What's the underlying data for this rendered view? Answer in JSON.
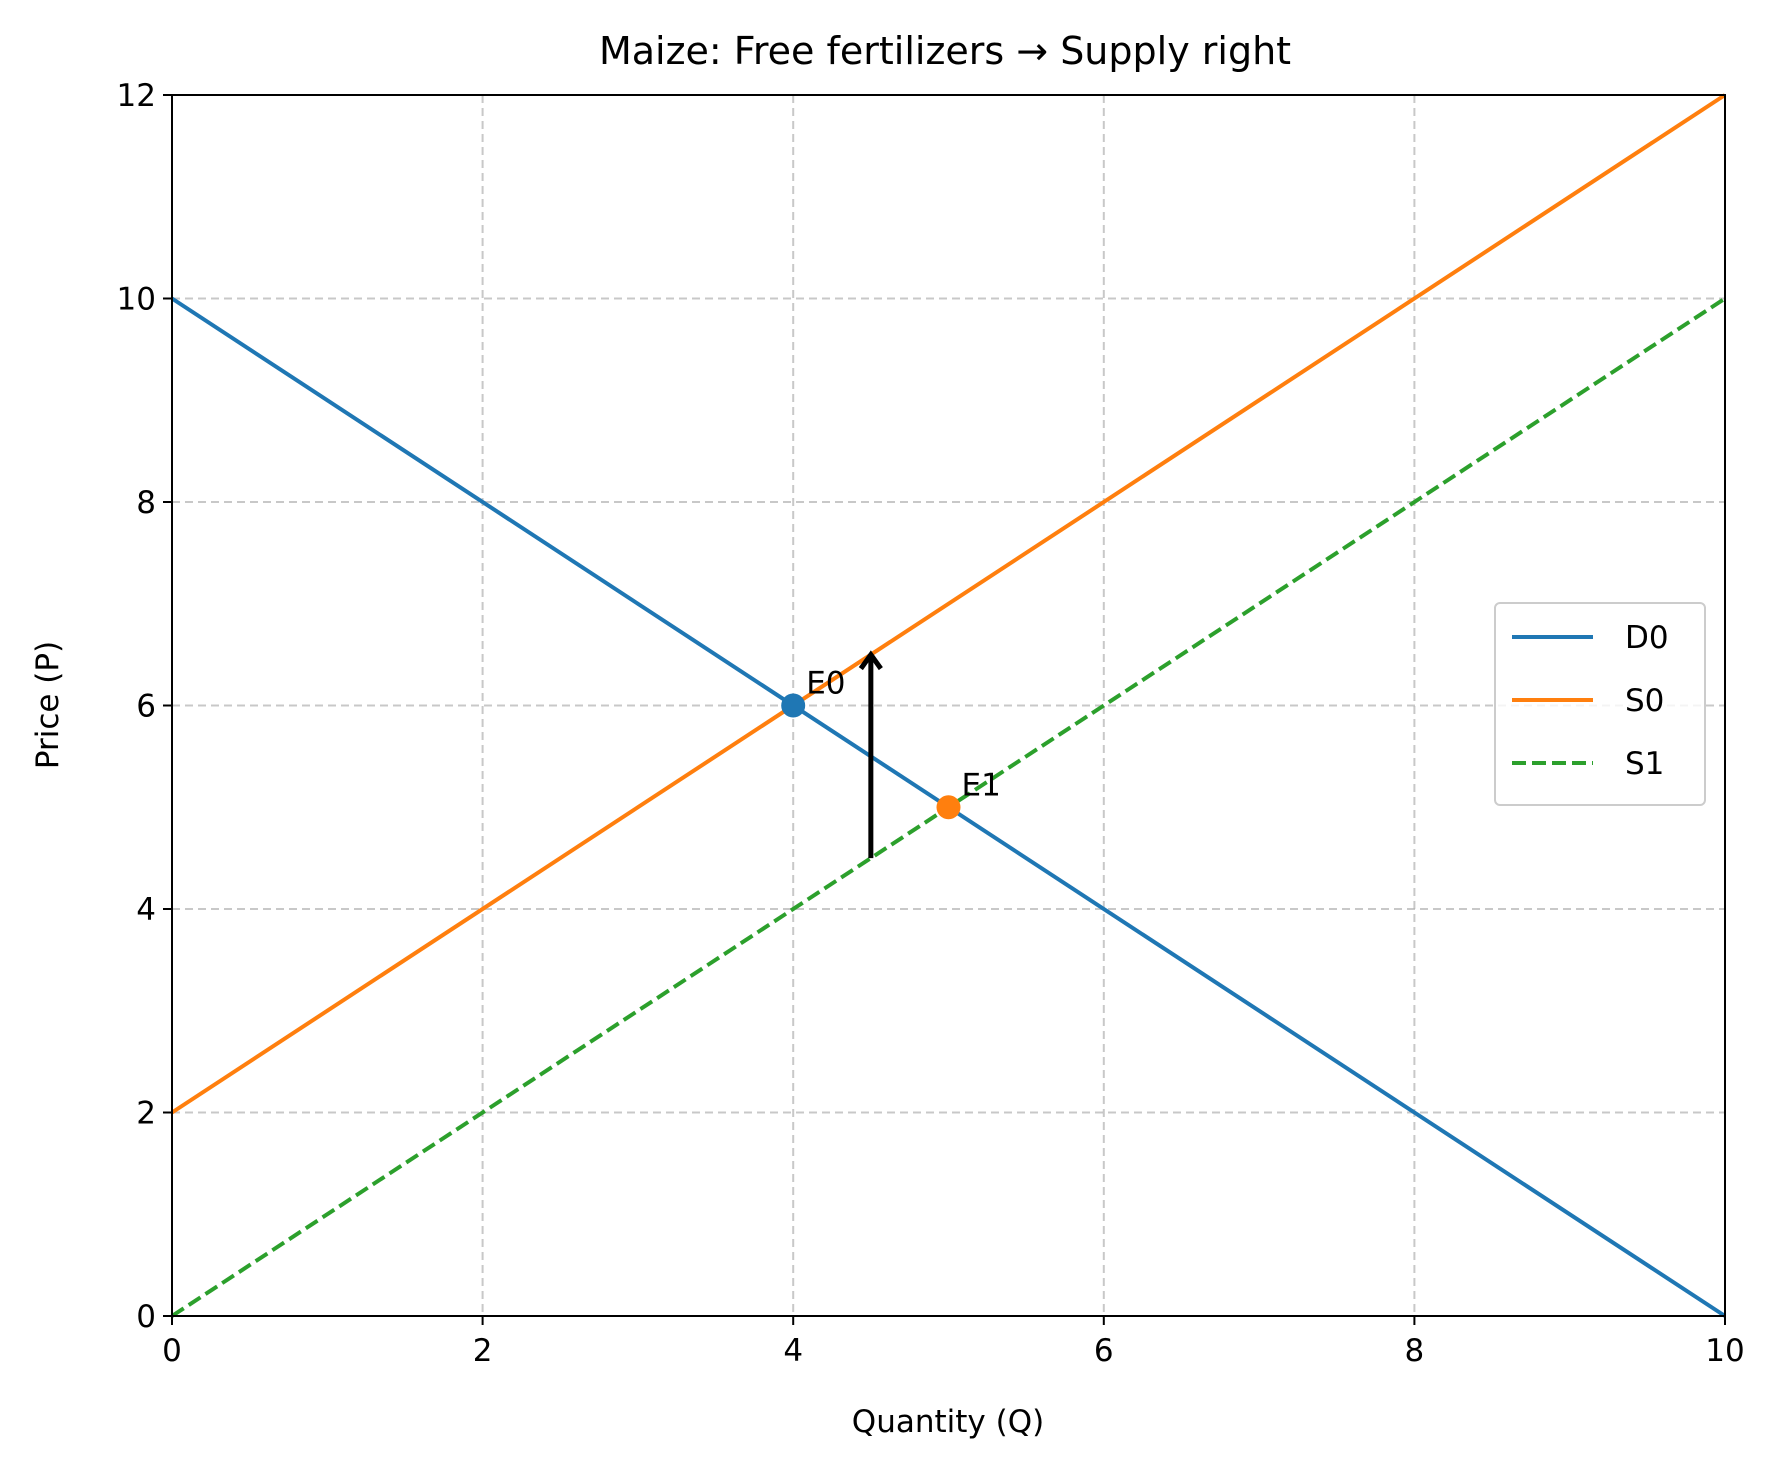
{
  "chart_data": {
    "type": "line",
    "title": "Maize: Free fertilizers → Supply right",
    "xlabel": "Quantity (Q)",
    "ylabel": "Price (P)",
    "xlim": [
      0,
      10
    ],
    "ylim": [
      0,
      12
    ],
    "xticks": [
      "0",
      "2",
      "4",
      "6",
      "8",
      "10"
    ],
    "yticks": [
      "0",
      "2",
      "4",
      "6",
      "8",
      "10",
      "12"
    ],
    "grid": true,
    "legend_position": "center-right",
    "series": [
      {
        "name": "D0",
        "color": "#1f77b4",
        "dash": "solid",
        "x": [
          0,
          10
        ],
        "y": [
          10,
          0
        ]
      },
      {
        "name": "S0",
        "color": "#ff7f0e",
        "dash": "solid",
        "x": [
          0,
          10
        ],
        "y": [
          2,
          12
        ]
      },
      {
        "name": "S1",
        "color": "#2ca02c",
        "dash": "dashed",
        "x": [
          0,
          10
        ],
        "y": [
          0,
          10
        ]
      }
    ],
    "points": [
      {
        "label": "E0",
        "x": 4,
        "y": 6,
        "color": "#1f77b4"
      },
      {
        "label": "E1",
        "x": 5,
        "y": 5,
        "color": "#ff7f0e"
      }
    ],
    "arrow": {
      "x": 4.5,
      "y_from": 4.5,
      "y_to": 6.5,
      "color": "#000000"
    }
  }
}
